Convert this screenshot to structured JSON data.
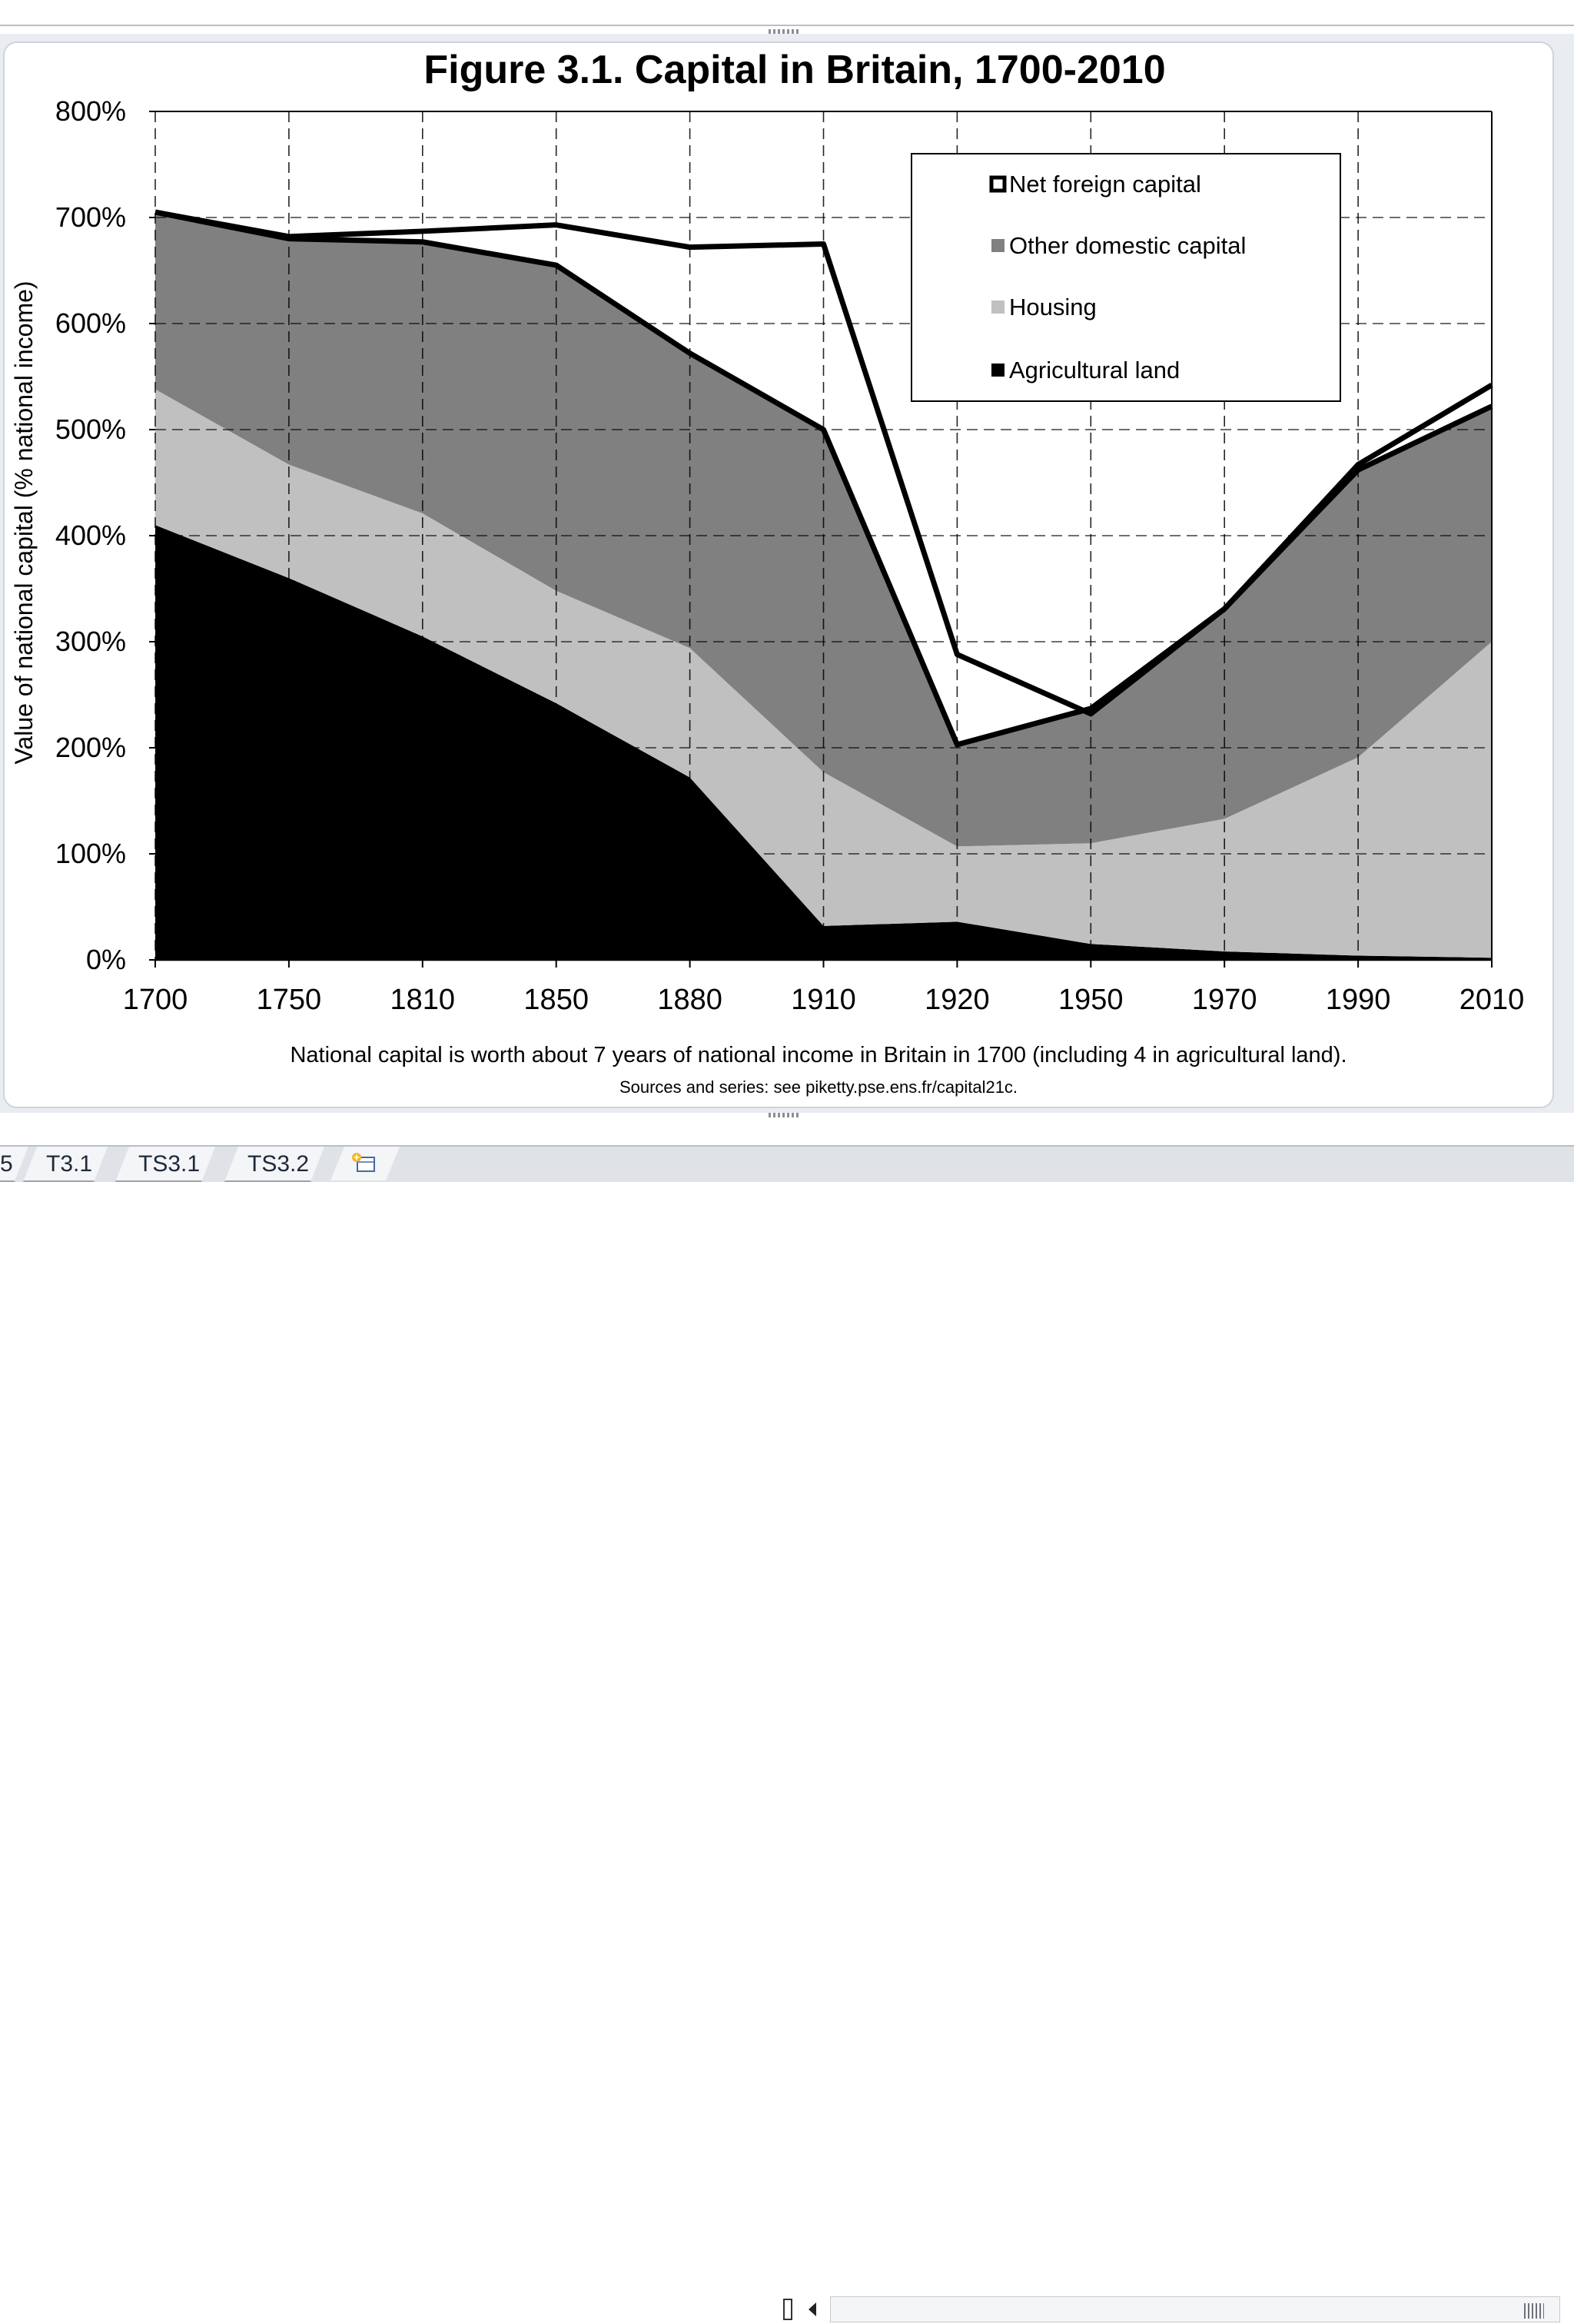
{
  "chart_data": {
    "type": "area",
    "stacked": true,
    "title": "Figure 3.1. Capital in Britain, 1700-2010",
    "ylabel": "Value of national capital (% national income)",
    "xlabel": "",
    "ylim": [
      0,
      800
    ],
    "y_ticks": [
      0,
      100,
      200,
      300,
      400,
      500,
      600,
      700,
      800
    ],
    "y_tick_labels": [
      "0%",
      "100%",
      "200%",
      "300%",
      "400%",
      "500%",
      "600%",
      "700%",
      "800%"
    ],
    "categories": [
      "1700",
      "1750",
      "1810",
      "1850",
      "1880",
      "1910",
      "1920",
      "1950",
      "1970",
      "1990",
      "2010"
    ],
    "series": [
      {
        "name": "Agricultural land",
        "color": "#000000",
        "values": [
          410,
          360,
          305,
          242,
          172,
          32,
          36,
          15,
          8,
          4,
          2
        ]
      },
      {
        "name": "Housing",
        "color": "#c0c0c0",
        "values": [
          128,
          107,
          116,
          106,
          122,
          145,
          71,
          95,
          125,
          187,
          298
        ]
      },
      {
        "name": "Other domestic capital",
        "color": "#808080",
        "values": [
          167,
          213,
          256,
          307,
          278,
          323,
          96,
          127,
          198,
          271,
          222
        ]
      },
      {
        "name": "Net foreign capital",
        "color": "#ffffff",
        "values": [
          0,
          2,
          10,
          38,
          100,
          175,
          85,
          -5,
          0,
          5,
          20
        ]
      }
    ],
    "legend_position": "top-right",
    "legend_order": [
      "Net foreign capital",
      "Other domestic capital",
      "Housing",
      "Agricultural land"
    ],
    "grid": {
      "vertical": "dashed",
      "horizontal": "dashed"
    },
    "caption": "National capital is worth about 7 years of national income in Britain in 1700 (including 4 in agricultural land).",
    "source": "Sources and series: see piketty.pse.ens.fr/capital21c."
  },
  "sheet_tabs": [
    {
      "label": "5"
    },
    {
      "label": "T3.1"
    },
    {
      "label": "TS3.1"
    },
    {
      "label": "TS3.2"
    }
  ],
  "icons": {
    "new_sheet": "insert-worksheet-icon",
    "scroll_left": "scroll-left-icon"
  }
}
